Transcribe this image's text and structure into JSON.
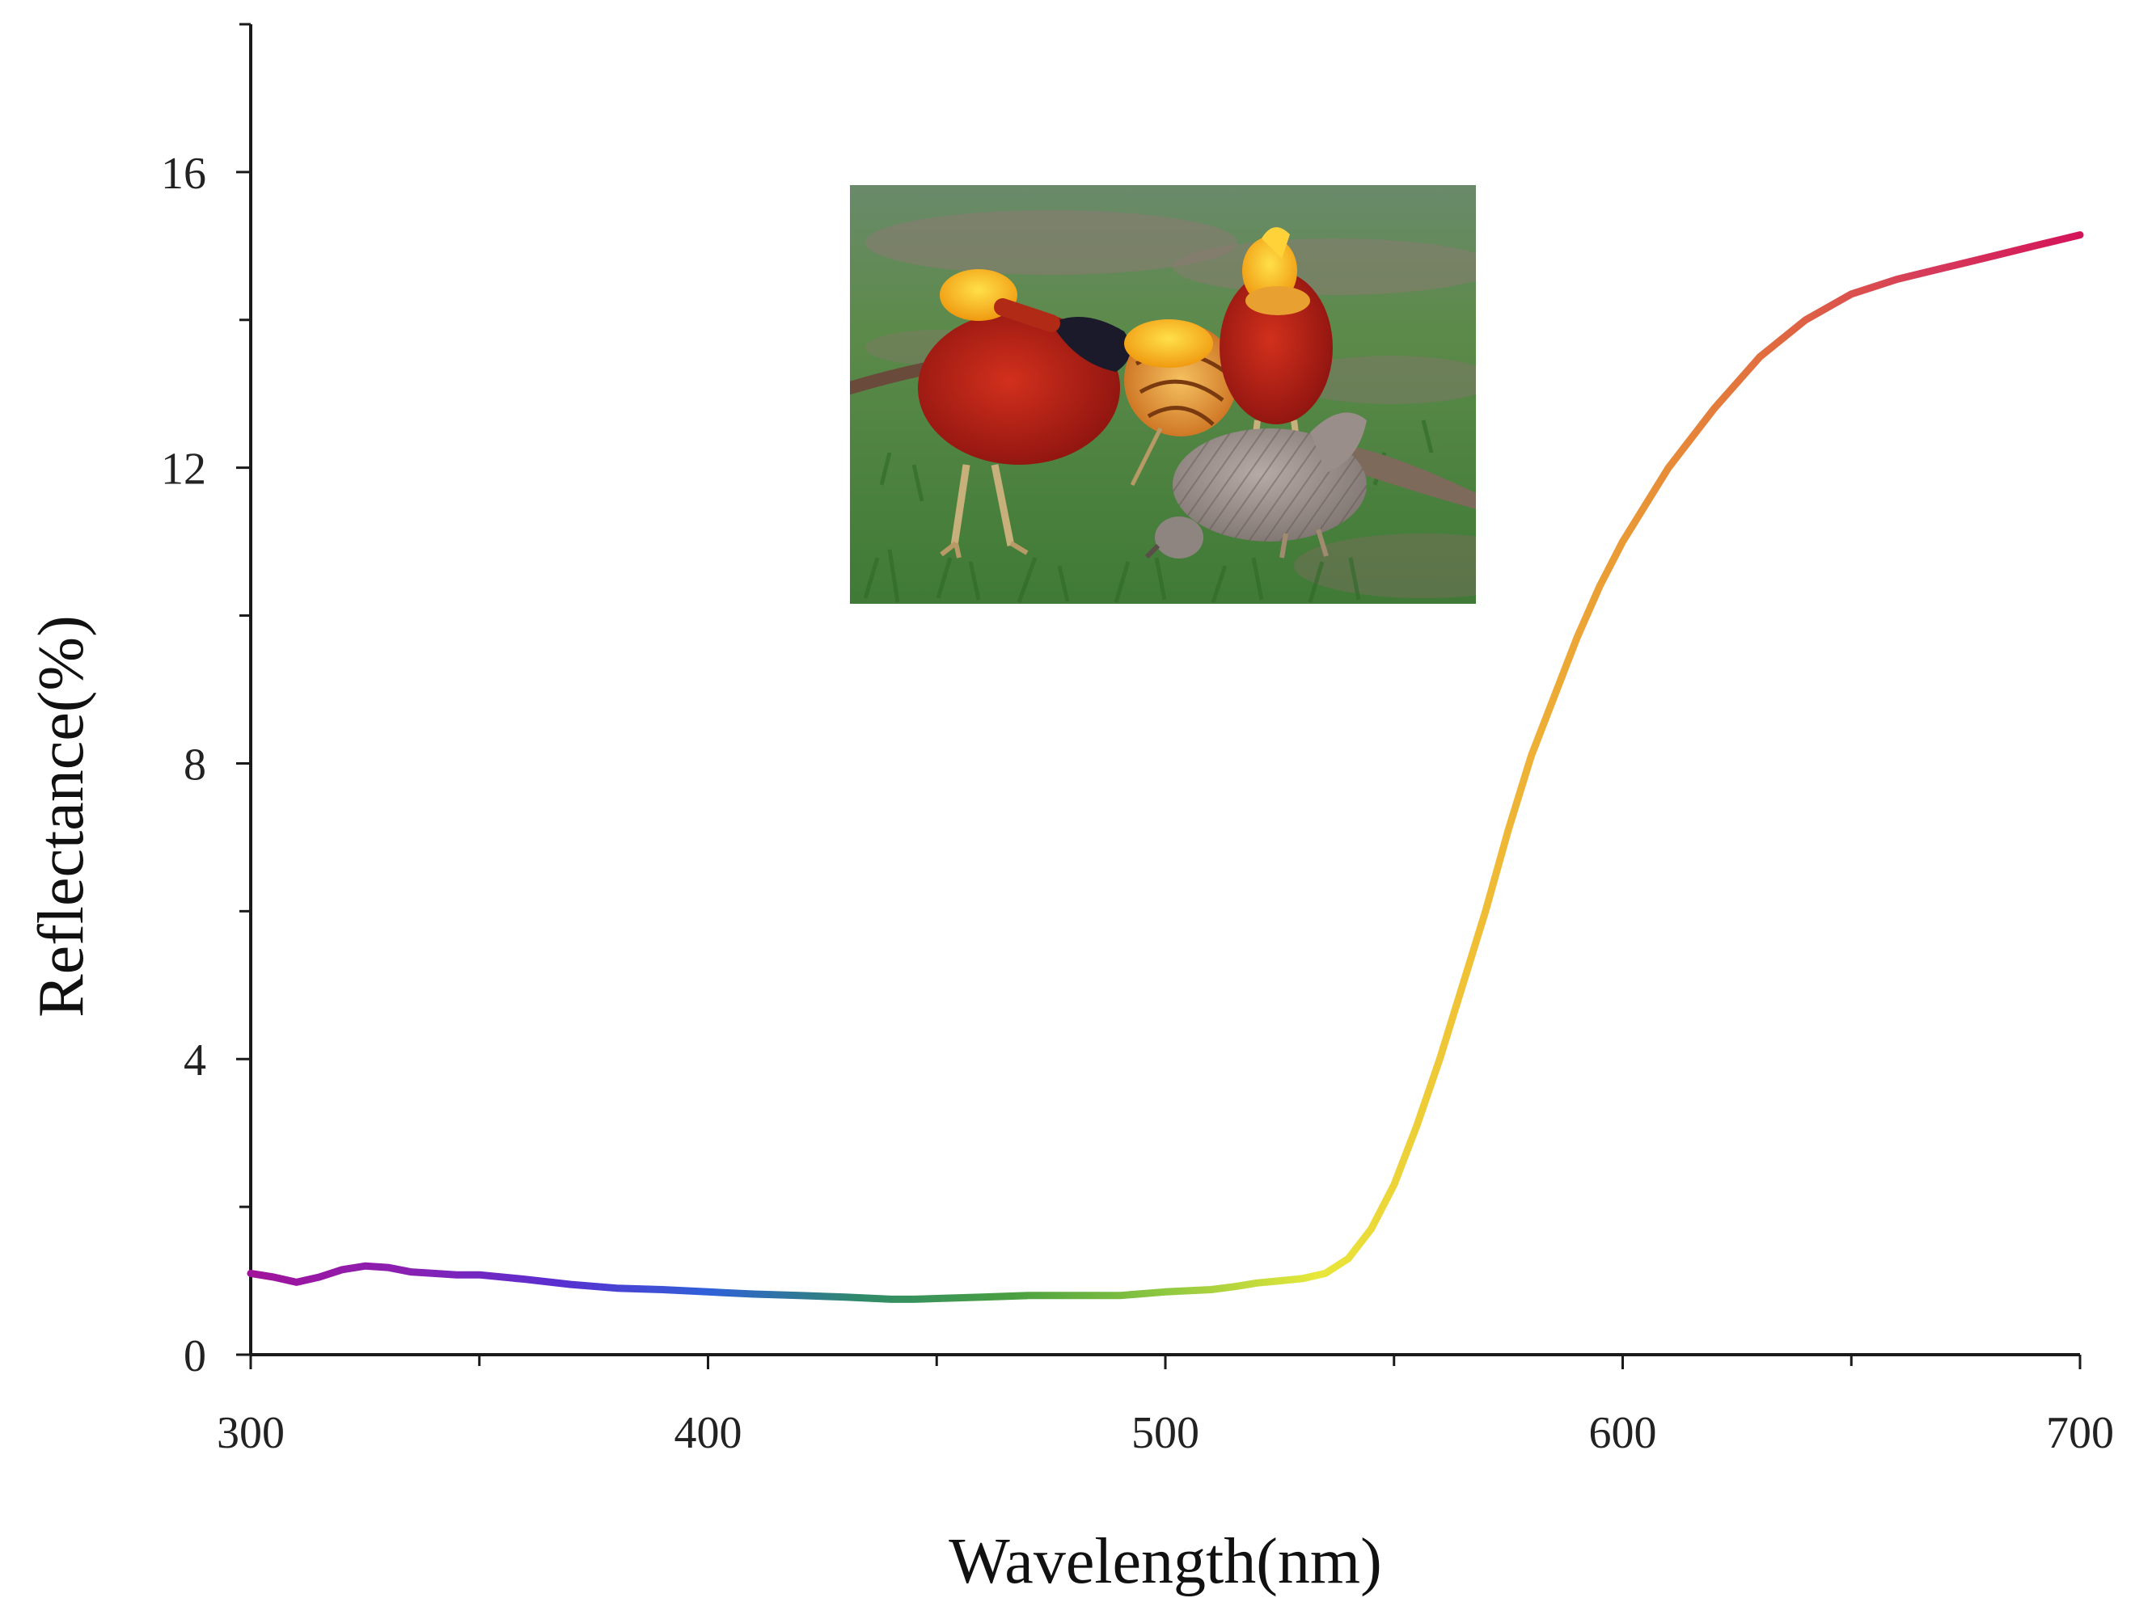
{
  "chart_data": {
    "type": "line",
    "title": "",
    "xlabel": "Wavelength(nm)",
    "ylabel": "Reflectance(%)",
    "xlim": [
      300,
      700
    ],
    "ylim": [
      0,
      18
    ],
    "x_ticks": [
      300,
      400,
      500,
      600,
      700
    ],
    "x_tick_labels": [
      "300",
      "400",
      "500",
      "600",
      "700"
    ],
    "y_ticks": [
      0,
      4,
      8,
      12,
      16
    ],
    "y_tick_labels": [
      "0",
      "4",
      "8",
      "12",
      "16"
    ],
    "grid": false,
    "legend": "none",
    "series": [
      {
        "name": "Reflectance",
        "line_style": "spectral-gradient",
        "x": [
          300,
          305,
          310,
          315,
          320,
          325,
          330,
          335,
          340,
          345,
          350,
          360,
          370,
          380,
          390,
          400,
          410,
          420,
          430,
          440,
          445,
          450,
          460,
          470,
          480,
          490,
          500,
          510,
          515,
          520,
          525,
          530,
          535,
          540,
          545,
          550,
          555,
          560,
          565,
          570,
          575,
          580,
          585,
          590,
          595,
          600,
          605,
          610,
          620,
          630,
          640,
          650,
          660,
          670,
          680,
          690,
          700
        ],
        "y": [
          1.1,
          1.05,
          0.98,
          1.05,
          1.15,
          1.2,
          1.18,
          1.12,
          1.1,
          1.08,
          1.08,
          1.02,
          0.95,
          0.9,
          0.88,
          0.85,
          0.82,
          0.8,
          0.78,
          0.75,
          0.75,
          0.76,
          0.78,
          0.8,
          0.8,
          0.8,
          0.85,
          0.88,
          0.92,
          0.97,
          1.0,
          1.03,
          1.1,
          1.3,
          1.7,
          2.3,
          3.1,
          4.0,
          5.0,
          6.0,
          7.1,
          8.1,
          8.9,
          9.7,
          10.4,
          11.0,
          11.5,
          12.0,
          12.8,
          13.5,
          14.0,
          14.35,
          14.55,
          14.7,
          14.85,
          15.0,
          15.15
        ]
      }
    ],
    "gradient_colors": [
      "#a0139a",
      "#8a1fb2",
      "#5a2fd0",
      "#2f60d8",
      "#2f8a6a",
      "#4aa040",
      "#8fc840",
      "#e8e83a",
      "#f0c035",
      "#ea9a35",
      "#e06a40",
      "#d63a5a",
      "#d4145a"
    ],
    "inset_image": {
      "description_name": "golden-pheasant-photo"
    }
  }
}
